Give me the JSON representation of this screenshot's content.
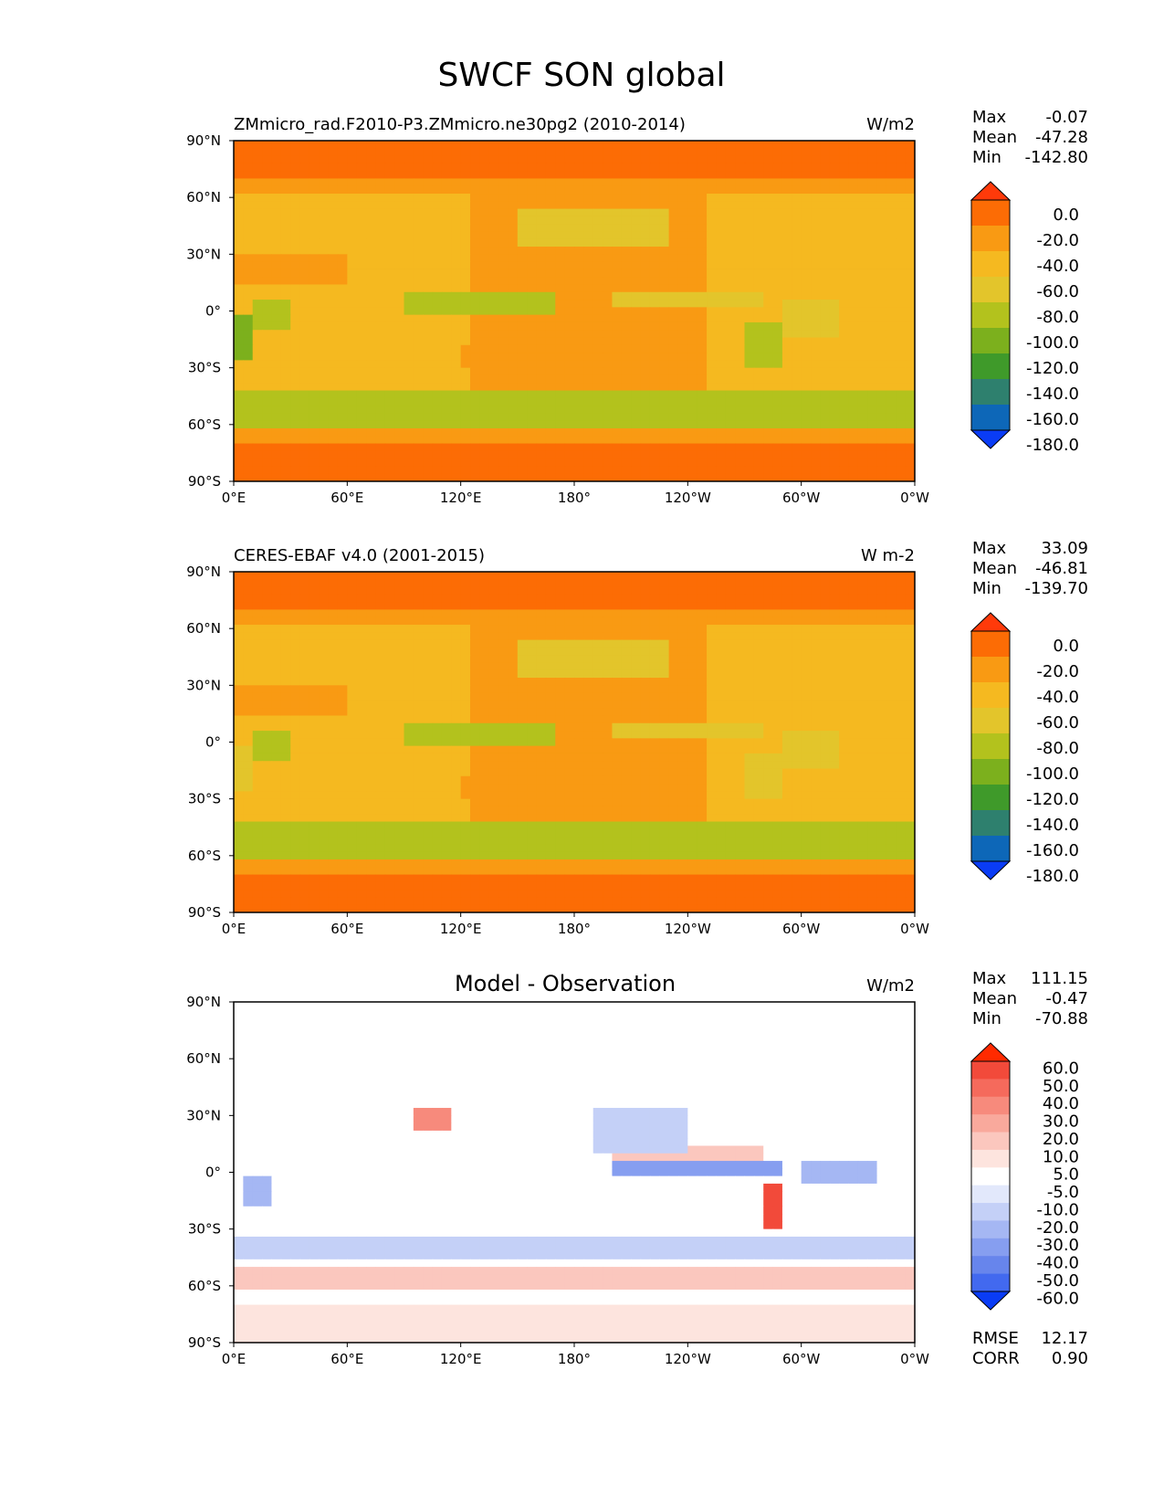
{
  "title": "SWCF SON global",
  "chart_data": [
    {
      "type": "heatmap",
      "panel_title_left": "ZMmicro_rad.F2010-P3.ZMmicro.ne30pg2 (2010-2014)",
      "panel_title_center": "",
      "units": "W/m2",
      "stats": {
        "max_label": "Max",
        "max": "-0.07",
        "mean_label": "Mean",
        "mean": "-47.28",
        "min_label": "Min",
        "min": "-142.80"
      },
      "xticks": [
        "0°E",
        "60°E",
        "120°E",
        "180°",
        "120°W",
        "60°W",
        "0°W"
      ],
      "yticks": [
        "90°N",
        "60°N",
        "30°N",
        "0°",
        "30°S",
        "60°S",
        "90°S"
      ],
      "xlim": [
        0,
        360
      ],
      "ylim": [
        -90,
        90
      ],
      "colorbar": {
        "labels": [
          "0.0",
          "-20.0",
          "-40.0",
          "-60.0",
          "-80.0",
          "-100.0",
          "-120.0",
          "-140.0",
          "-160.0",
          "-180.0"
        ],
        "colors": [
          "#ff3a0a",
          "#fc6c05",
          "#f99a13",
          "#f5b920",
          "#e3c52b",
          "#b3c21d",
          "#7cb01d",
          "#3f9a2a",
          "#2e806e",
          "#0d67b8",
          "#0a3cf5"
        ]
      }
    },
    {
      "type": "heatmap",
      "panel_title_left": "CERES-EBAF v4.0 (2001-2015)",
      "panel_title_center": "",
      "units": "W m-2",
      "stats": {
        "max_label": "Max",
        "max": "33.09",
        "mean_label": "Mean",
        "mean": "-46.81",
        "min_label": "Min",
        "min": "-139.70"
      },
      "xticks": [
        "0°E",
        "60°E",
        "120°E",
        "180°",
        "120°W",
        "60°W",
        "0°W"
      ],
      "yticks": [
        "90°N",
        "60°N",
        "30°N",
        "0°",
        "30°S",
        "60°S",
        "90°S"
      ],
      "xlim": [
        0,
        360
      ],
      "ylim": [
        -90,
        90
      ],
      "colorbar": {
        "labels": [
          "0.0",
          "-20.0",
          "-40.0",
          "-60.0",
          "-80.0",
          "-100.0",
          "-120.0",
          "-140.0",
          "-160.0",
          "-180.0"
        ],
        "colors": [
          "#ff3a0a",
          "#fc6c05",
          "#f99a13",
          "#f5b920",
          "#e3c52b",
          "#b3c21d",
          "#7cb01d",
          "#3f9a2a",
          "#2e806e",
          "#0d67b8",
          "#0a3cf5"
        ]
      }
    },
    {
      "type": "heatmap",
      "panel_title_left": "",
      "panel_title_center": "Model - Observation",
      "units": "W/m2",
      "stats": {
        "max_label": "Max",
        "max": "111.15",
        "mean_label": "Mean",
        "mean": "-0.47",
        "min_label": "Min",
        "min": "-70.88"
      },
      "extra_stats": {
        "rmse_label": "RMSE",
        "rmse": "12.17",
        "corr_label": "CORR",
        "corr": "0.90"
      },
      "xticks": [
        "0°E",
        "60°E",
        "120°E",
        "180°",
        "120°W",
        "60°W",
        "0°W"
      ],
      "yticks": [
        "90°N",
        "60°N",
        "30°N",
        "0°",
        "30°S",
        "60°S",
        "90°S"
      ],
      "xlim": [
        0,
        360
      ],
      "ylim": [
        -90,
        90
      ],
      "colorbar": {
        "labels": [
          "60.0",
          "50.0",
          "40.0",
          "30.0",
          "20.0",
          "10.0",
          "5.0",
          "-5.0",
          "-10.0",
          "-20.0",
          "-30.0",
          "-40.0",
          "-50.0",
          "-60.0"
        ],
        "colors": [
          "#ff2a00",
          "#f24a3a",
          "#f56a5c",
          "#f78a7c",
          "#f9a99c",
          "#fbc7be",
          "#fde4de",
          "#ffffff",
          "#e2e8fb",
          "#c4d0f7",
          "#a5b7f3",
          "#869ef0",
          "#6785ec",
          "#4269ef",
          "#0a3cf5"
        ]
      }
    }
  ]
}
